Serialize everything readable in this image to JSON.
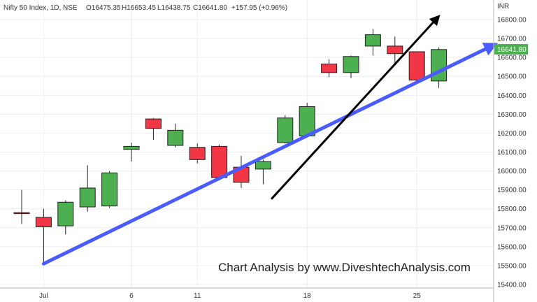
{
  "header": {
    "symbol": "Nifty 50 Index, 1D, NSE",
    "open": "O16475.35",
    "high": "H16653.45",
    "low": "L16438.75",
    "close": "C16641.80",
    "change": "+157.95 (+0.96%)"
  },
  "currency": "INR",
  "current_price_label": "16641.80",
  "watermark": "Chart Analysis by www.DiveshtechAnalysis.com",
  "colors": {
    "up": "#4caf50",
    "down": "#f23645",
    "trendline_blue": "#4b5cff",
    "arrow_black": "#000000"
  },
  "chart_data": {
    "type": "candlestick",
    "title": "Nifty 50 Index, 1D, NSE",
    "ylabel": "INR",
    "ylim": [
      15400,
      16880
    ],
    "y_ticks": [
      "15400.00",
      "15500.00",
      "15600.00",
      "15700.00",
      "15800.00",
      "15900.00",
      "16000.00",
      "16100.00",
      "16200.00",
      "16300.00",
      "16400.00",
      "16500.00",
      "16600.00",
      "16700.00",
      "16800.00"
    ],
    "x_ticks": [
      {
        "label": "Jul",
        "index": 1
      },
      {
        "label": "6",
        "index": 5
      },
      {
        "label": "11",
        "index": 8
      },
      {
        "label": "18",
        "index": 13
      },
      {
        "label": "25",
        "index": 18
      }
    ],
    "candles": [
      {
        "o": 15780,
        "h": 15900,
        "l": 15720,
        "c": 15775
      },
      {
        "o": 15755,
        "h": 15800,
        "l": 15510,
        "c": 15705
      },
      {
        "o": 15710,
        "h": 15845,
        "l": 15665,
        "c": 15835
      },
      {
        "o": 15810,
        "h": 16030,
        "l": 15785,
        "c": 15910
      },
      {
        "o": 15815,
        "h": 16000,
        "l": 15805,
        "c": 15990
      },
      {
        "o": 16115,
        "h": 16150,
        "l": 16050,
        "c": 16130
      },
      {
        "o": 16275,
        "h": 16280,
        "l": 16165,
        "c": 16225
      },
      {
        "o": 16135,
        "h": 16250,
        "l": 16125,
        "c": 16215
      },
      {
        "o": 16125,
        "h": 16145,
        "l": 16040,
        "c": 16060
      },
      {
        "o": 16130,
        "h": 16140,
        "l": 15950,
        "c": 15965
      },
      {
        "o": 16020,
        "h": 16080,
        "l": 15910,
        "c": 15940
      },
      {
        "o": 16010,
        "h": 16060,
        "l": 15930,
        "c": 16050
      },
      {
        "o": 16150,
        "h": 16295,
        "l": 16145,
        "c": 16280
      },
      {
        "o": 16185,
        "h": 16360,
        "l": 16180,
        "c": 16340
      },
      {
        "o": 16565,
        "h": 16590,
        "l": 16495,
        "c": 16520
      },
      {
        "o": 16520,
        "h": 16610,
        "l": 16490,
        "c": 16605
      },
      {
        "o": 16660,
        "h": 16750,
        "l": 16610,
        "c": 16720
      },
      {
        "o": 16660,
        "h": 16710,
        "l": 16570,
        "c": 16620
      },
      {
        "o": 16630,
        "h": 16630,
        "l": 16470,
        "c": 16480
      },
      {
        "o": 16475.35,
        "h": 16653.45,
        "l": 16438.75,
        "c": 16641.8
      }
    ],
    "annotations": [
      {
        "type": "trendline",
        "color": "#4b5cff",
        "from": {
          "index": 1,
          "y": 15510
        },
        "to": {
          "index": 21.4,
          "y": 16660
        }
      },
      {
        "type": "arrow",
        "color": "#000000",
        "from": {
          "index": 11.4,
          "y": 15855
        },
        "to": {
          "index": 18.9,
          "y": 16805
        }
      }
    ]
  }
}
